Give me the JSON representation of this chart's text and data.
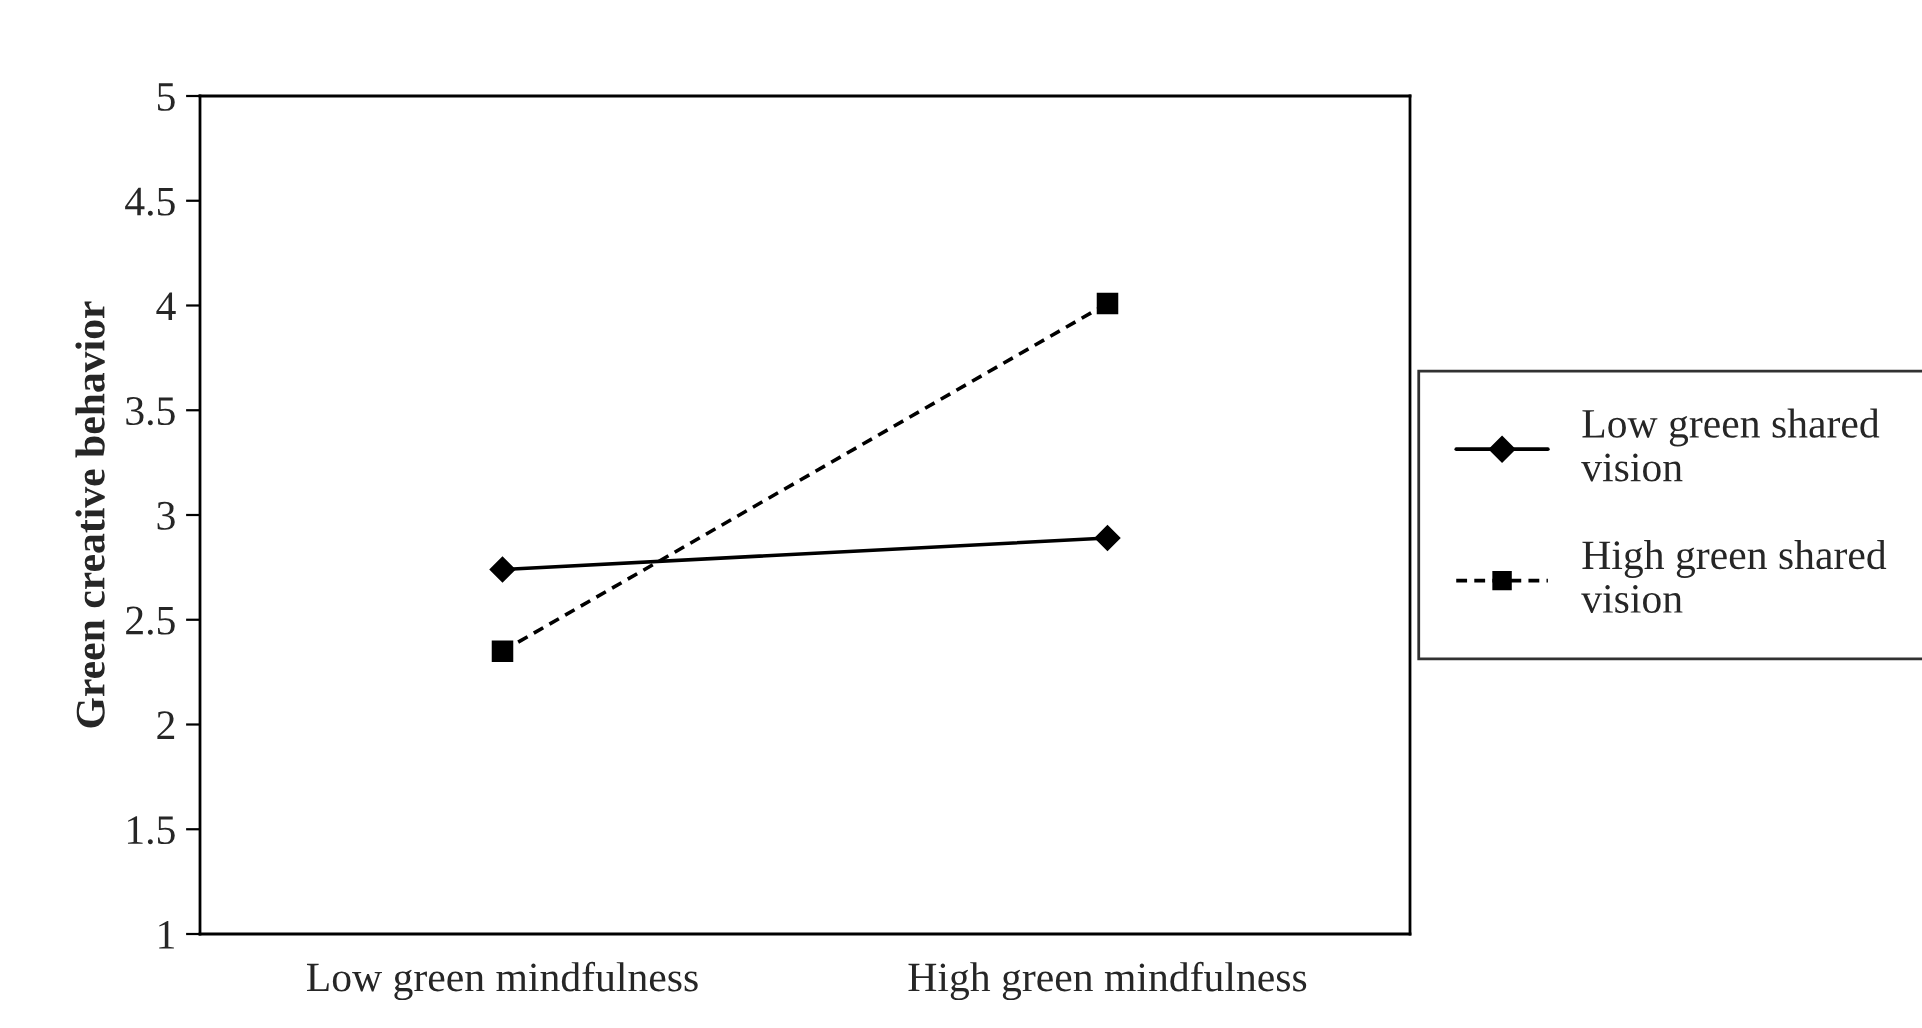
{
  "chart_data": {
    "type": "line",
    "ylabel": "Green creative behavior",
    "categories": [
      "Low green mindfulness",
      "High green mindfulness"
    ],
    "series": [
      {
        "name": "Low green shared vision",
        "color": "#000000",
        "values": [
          2.74,
          2.89
        ],
        "marker": "diamond",
        "line_style": "solid"
      },
      {
        "name": "High green shared vision",
        "color": "#000000",
        "values": [
          2.35,
          4.01
        ],
        "marker": "square",
        "line_style": "dashed"
      }
    ],
    "ylim": [
      1,
      5
    ],
    "yticks": [
      1,
      1.5,
      2,
      2.5,
      3,
      3.5,
      4,
      4.5,
      5
    ],
    "grid": false,
    "legend": "right"
  }
}
